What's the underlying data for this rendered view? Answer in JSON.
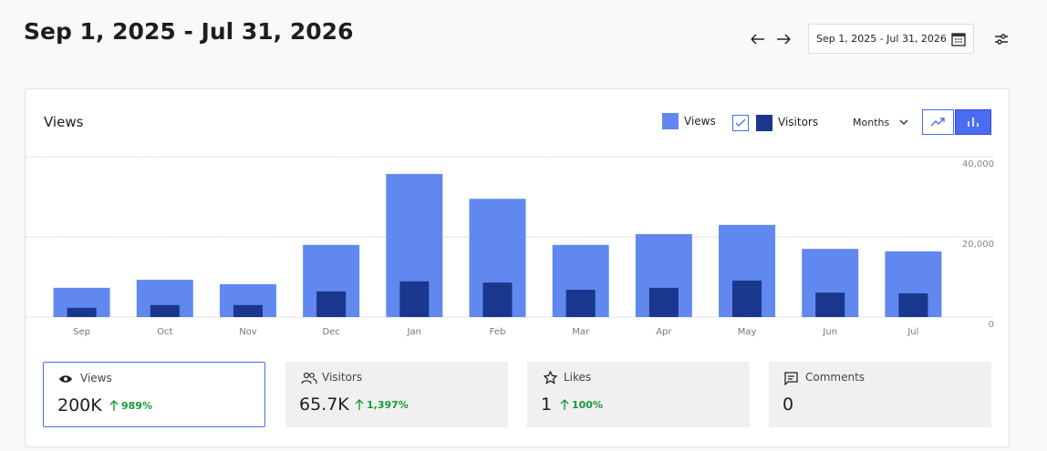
{
  "header": {
    "title": "Sep 1, 2025 - Jul 31, 2026",
    "date_range": "Sep 1, 2025 - Jul 31, 2026"
  },
  "chart_data": {
    "type": "bar",
    "title": "Views",
    "period": "Months",
    "categories": [
      "Sep",
      "Oct",
      "Nov",
      "Dec",
      "Jan",
      "Feb",
      "Mar",
      "Apr",
      "May",
      "Jun",
      "Jul"
    ],
    "series": [
      {
        "name": "Views",
        "color": "#6088ee",
        "values": [
          7300,
          9300,
          8200,
          18000,
          35700,
          29500,
          18000,
          20700,
          23000,
          17000,
          16400
        ]
      },
      {
        "name": "Visitors",
        "color": "#19378c",
        "values": [
          2300,
          3000,
          3000,
          6400,
          8900,
          8600,
          6800,
          7300,
          9100,
          6100,
          5900
        ]
      }
    ],
    "ylim": [
      0,
      40000
    ],
    "yticks": [
      0,
      {
        "value": 20000,
        "label": "20,000"
      },
      {
        "value": 40000,
        "label": "40,000"
      }
    ],
    "grid": true
  },
  "stats": [
    {
      "label": "Views",
      "value": "200K",
      "change": "989%"
    },
    {
      "label": "Visitors",
      "value": "65.7K",
      "change": "1,397%"
    },
    {
      "label": "Likes",
      "value": "1",
      "change": "100%"
    },
    {
      "label": "Comments",
      "value": "0"
    }
  ]
}
